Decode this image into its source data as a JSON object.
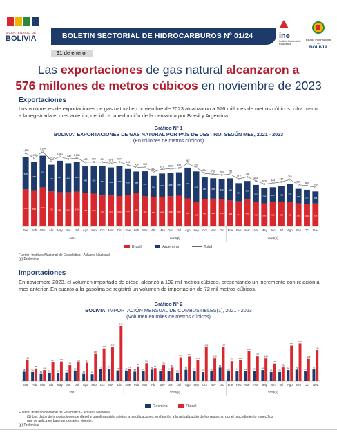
{
  "header": {
    "bicentenario": "BICENTENARIO DE",
    "bolivia": "BOLIVIA",
    "bulletin_title": "BOLETÍN SECTORIAL DE HIDROCARBUROS Nº 01/24",
    "date": "31 de enero",
    "ine_logo": "ine",
    "ine_sub": "Instituto Nacional de Estadística",
    "estado": "Estado Plurinacional de",
    "estado_bolivia": "BOLIVIA"
  },
  "headline": {
    "part1": "Las ",
    "hl1": "exportaciones",
    "part2": " de gas natural ",
    "hl2": "alcanzaron a",
    "hl3": "576 millones de metros cúbicos",
    "part3": " en noviembre de 2023"
  },
  "exports": {
    "heading": "Exportaciones",
    "text": "Los volúmenes de exportaciones de gas natural en noviembre de 2023 alcanzaron a 576 millones de metros cúbicos, cifra menor a la registrada el mes anterior, debido a la reducción de la demanda por Brasil y Argentina.",
    "source": "Fuente: Instituto Nacional de Estadística - Aduana Nacional",
    "note": "(p) Preliminar"
  },
  "imports": {
    "heading": "Importaciones",
    "text": "En noviembre 2023, el volumen importado de diésel alcanzó a 192 mil metros cúbicos, presentando un incremento con relación al mes anterior. En cuanto a la gasolina se registró un volumen de importación de 72 mil metros cúbicos.",
    "source": "Fuente: Instituto Nacional de Estadística - Aduana Nacional",
    "note1": "(1) Los datos de importaciones de diésel y gasolina están sujetos a modificaciones, en función a la actualización de los registros, por el procedimiento específico",
    "note2": "que se aplica en base a normativa vigente.",
    "note3": "(p) Preliminar"
  },
  "chart_data": [
    {
      "type": "bar",
      "number": "Gráfico Nº 1",
      "title": "BOLIVIA: EXPORTACIONES DE GAS NATURAL POR PAÍS DE DESTINO, SEGÚN MES, 2021 - 2023",
      "subtitle": "(En millones de metros cúbicos)",
      "categories": [
        "Ene",
        "Feb",
        "Mar",
        "Abr",
        "May",
        "Jun",
        "Jul",
        "Ago",
        "Sep",
        "Oct",
        "Nov",
        "Dic",
        "Ene",
        "Feb",
        "Mar",
        "Abr",
        "May",
        "Jun",
        "Jul",
        "Ago",
        "Sep",
        "Oct",
        "Nov",
        "Dic",
        "Ene",
        "Feb",
        "Mar",
        "Abr",
        "May",
        "Jun",
        "Jul",
        "Ago",
        "Sep",
        "Oct",
        "Nov"
      ],
      "year_labels": [
        "2021",
        "2022(p)",
        "2023(p)"
      ],
      "stacked": true,
      "series": [
        {
          "name": "Brasil",
          "color": "#d9272e",
          "values": [
            610,
            596,
            640,
            576,
            560,
            560,
            574,
            548,
            540,
            508,
            510,
            500,
            518,
            552,
            496,
            478,
            488,
            498,
            506,
            460,
            400,
            448,
            456,
            450,
            428,
            412,
            440,
            400,
            380,
            400,
            398,
            402,
            380,
            366,
            378
          ]
        },
        {
          "name": "Argentina",
          "color": "#1d3a6b",
          "values": [
            528,
            463,
            524,
            440,
            521,
            481,
            484,
            440,
            452,
            482,
            461,
            497,
            428,
            352,
            412,
            354,
            383,
            385,
            385,
            507,
            506,
            358,
            336,
            330,
            363,
            300,
            308,
            283,
            249,
            244,
            266,
            302,
            238,
            237,
            198
          ]
        }
      ],
      "total": {
        "name": "Total",
        "values": [
          1138,
          1059,
          1164,
          1016,
          1081,
          1041,
          1058,
          988,
          992,
          990,
          971,
          997,
          946,
          904,
          908,
          832,
          871,
          883,
          891,
          967,
          906,
          806,
          792,
          780,
          791,
          712,
          748,
          683,
          629,
          644,
          664,
          704,
          618,
          603,
          576
        ]
      },
      "ylim": [
        0,
        1250
      ],
      "legend": "bottom"
    },
    {
      "type": "bar",
      "number": "Gráfico Nº 2",
      "title": "IMPORTACIÓN MENSUAL DE COMBUSTIBLES(1), 2021 - 2023",
      "title_prefix": "BOLIVIA: ",
      "subtitle": "(Volumen en miles de metros cúbicos)",
      "categories": [
        "Ene",
        "Feb",
        "Mar",
        "Abr",
        "May",
        "Jun",
        "Jul",
        "Ago",
        "Sep",
        "Oct",
        "Nov",
        "Dic",
        "Ene",
        "Feb",
        "Mar",
        "Abr",
        "May",
        "Jun",
        "Jul",
        "Ago",
        "Sep",
        "Oct",
        "Nov",
        "Dic",
        "Ene",
        "Feb",
        "Mar",
        "Abr",
        "May",
        "Jun",
        "Jul",
        "Ago",
        "Sep",
        "Oct",
        "Nov"
      ],
      "year_labels": [
        "2021",
        "2022(p)",
        "2023(p)"
      ],
      "series": [
        {
          "name": "Gasolina",
          "color": "#1d3a6b",
          "values": [
            58,
            56,
            44,
            52,
            51,
            53,
            65,
            44,
            42,
            73,
            76,
            66,
            65,
            58,
            62,
            71,
            61,
            64,
            52,
            70,
            64,
            55,
            60,
            84,
            60,
            64,
            62,
            63,
            68,
            56,
            56,
            68,
            71,
            62,
            72
          ]
        },
        {
          "name": "Diésel",
          "color": "#d9272e",
          "values": [
            133,
            78,
            68,
            117,
            121,
            98,
            115,
            113,
            168,
            202,
            213,
            341,
            74,
            91,
            110,
            80,
            99,
            84,
            147,
            152,
            131,
            209,
            140,
            213,
            123,
            130,
            186,
            153,
            140,
            108,
            85,
            220,
            233,
            138,
            192
          ]
        }
      ],
      "ylim": [
        0,
        350
      ],
      "legend": "bottom"
    }
  ],
  "footer": {}
}
